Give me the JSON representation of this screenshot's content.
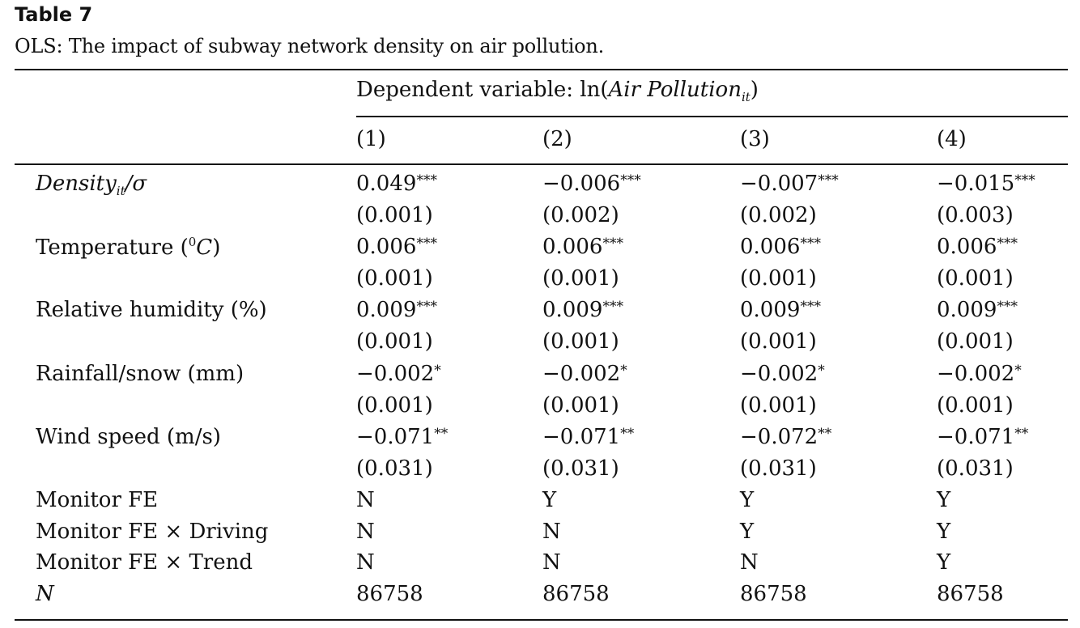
{
  "table": {
    "label": "Table 7",
    "caption": "OLS: The impact of subway network density on air pollution.",
    "dependent": {
      "prefix": "Dependent variable: ln(",
      "var": "Air Pollution",
      "sub": "it",
      "suffix": ")"
    },
    "columns": [
      "(1)",
      "(2)",
      "(3)",
      "(4)"
    ],
    "row_labels": {
      "density": {
        "main": "Density",
        "sub": "it",
        "tail": "/σ"
      },
      "temperature": {
        "pre": "Temperature (",
        "sup": "0",
        "unit": "C",
        "post": ")"
      },
      "humidity": "Relative humidity (%)",
      "rain": "Rainfall/snow (mm)",
      "wind": "Wind speed (m/s)",
      "monitor_fe": "Monitor FE",
      "monitor_fe_driving": "Monitor FE × Driving",
      "monitor_fe_trend": "Monitor FE × Trend",
      "n": "N"
    },
    "cells": {
      "density": [
        {
          "coef": "0.049",
          "stars": "***",
          "se": "(0.001)"
        },
        {
          "coef": "−0.006",
          "stars": "***",
          "se": "(0.002)"
        },
        {
          "coef": "−0.007",
          "stars": "***",
          "se": "(0.002)"
        },
        {
          "coef": "−0.015",
          "stars": "***",
          "se": "(0.003)"
        }
      ],
      "temperature": [
        {
          "coef": "0.006",
          "stars": "***",
          "se": "(0.001)"
        },
        {
          "coef": "0.006",
          "stars": "***",
          "se": "(0.001)"
        },
        {
          "coef": "0.006",
          "stars": "***",
          "se": "(0.001)"
        },
        {
          "coef": "0.006",
          "stars": "***",
          "se": "(0.001)"
        }
      ],
      "humidity": [
        {
          "coef": "0.009",
          "stars": "***",
          "se": "(0.001)"
        },
        {
          "coef": "0.009",
          "stars": "***",
          "se": "(0.001)"
        },
        {
          "coef": "0.009",
          "stars": "***",
          "se": "(0.001)"
        },
        {
          "coef": "0.009",
          "stars": "***",
          "se": "(0.001)"
        }
      ],
      "rain": [
        {
          "coef": "−0.002",
          "stars": "*",
          "se": "(0.001)"
        },
        {
          "coef": "−0.002",
          "stars": "*",
          "se": "(0.001)"
        },
        {
          "coef": "−0.002",
          "stars": "*",
          "se": "(0.001)"
        },
        {
          "coef": "−0.002",
          "stars": "*",
          "se": "(0.001)"
        }
      ],
      "wind": [
        {
          "coef": "−0.071",
          "stars": "**",
          "se": "(0.031)"
        },
        {
          "coef": "−0.071",
          "stars": "**",
          "se": "(0.031)"
        },
        {
          "coef": "−0.072",
          "stars": "**",
          "se": "(0.031)"
        },
        {
          "coef": "−0.071",
          "stars": "**",
          "se": "(0.031)"
        }
      ],
      "monitor_fe": [
        "N",
        "Y",
        "Y",
        "Y"
      ],
      "monitor_fe_driving": [
        "N",
        "N",
        "Y",
        "Y"
      ],
      "monitor_fe_trend": [
        "N",
        "N",
        "N",
        "Y"
      ],
      "n": [
        "86758",
        "86758",
        "86758",
        "86758"
      ]
    }
  }
}
